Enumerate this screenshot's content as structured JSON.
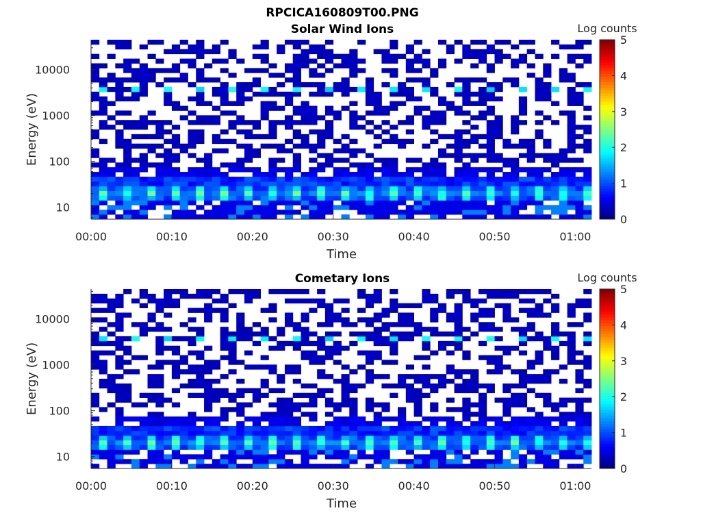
{
  "figure_title": "RPCICA160809T00.PNG",
  "colormap": "jet",
  "colors": {
    "axis": "#262626",
    "background": "#ffffff"
  },
  "chart_data": [
    {
      "type": "heatmap",
      "title": "Solar Wind Ions",
      "xlabel": "Time",
      "ylabel": "Energy (eV)",
      "x_tick_labels": [
        "00:00",
        "00:10",
        "00:20",
        "00:30",
        "00:40",
        "00:50",
        "01:00"
      ],
      "x_tick_minutes": [
        0,
        10,
        20,
        30,
        40,
        50,
        60
      ],
      "xlim_minutes": [
        0,
        62
      ],
      "y_scale": "log",
      "y_tick_labels": [
        "10",
        "100",
        "1000",
        "10000"
      ],
      "y_tick_values": [
        10,
        100,
        1000,
        10000
      ],
      "ylim": [
        5.5,
        45000
      ],
      "colorbar": {
        "label": "Log counts",
        "ticks": [
          "0",
          "1",
          "2",
          "3",
          "4",
          "5"
        ],
        "range": [
          0,
          5
        ]
      },
      "grid": false
    },
    {
      "type": "heatmap",
      "title": "Cometary Ions",
      "xlabel": "Time",
      "ylabel": "Energy (eV)",
      "x_tick_labels": [
        "00:00",
        "00:10",
        "00:20",
        "00:30",
        "00:40",
        "00:50",
        "01:00"
      ],
      "x_tick_minutes": [
        0,
        10,
        20,
        30,
        40,
        50,
        60
      ],
      "xlim_minutes": [
        0,
        62
      ],
      "y_scale": "log",
      "y_tick_labels": [
        "10",
        "100",
        "1000",
        "10000"
      ],
      "y_tick_values": [
        10,
        100,
        1000,
        10000
      ],
      "ylim": [
        5.5,
        45000
      ],
      "colorbar": {
        "label": "Log counts",
        "ticks": [
          "0",
          "1",
          "2",
          "3",
          "4",
          "5"
        ],
        "range": [
          0,
          5
        ]
      },
      "grid": false
    }
  ]
}
